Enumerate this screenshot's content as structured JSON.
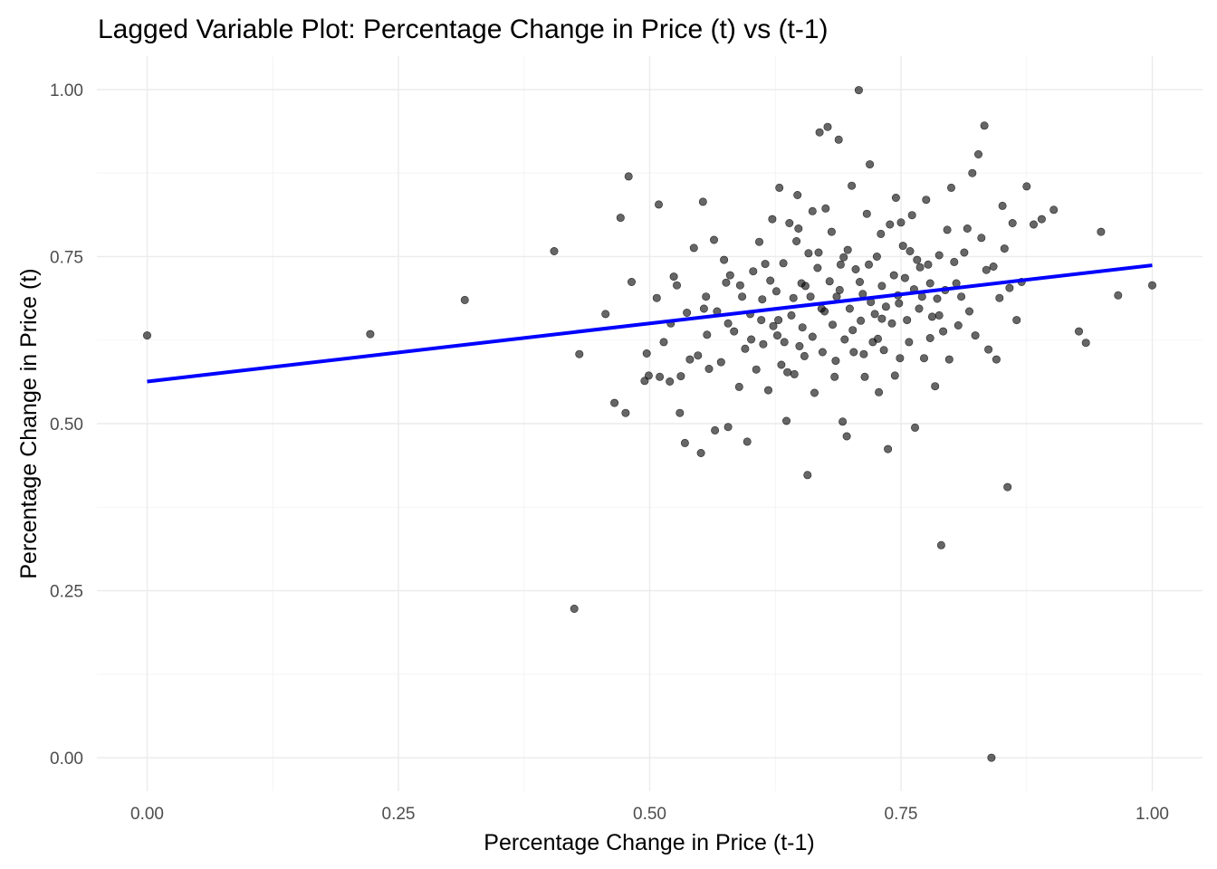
{
  "chart_data": {
    "type": "scatter",
    "title": "Lagged Variable Plot: Percentage Change in Price (t) vs (t-1)",
    "xlabel": "Percentage Change in Price (t-1)",
    "ylabel": "Percentage Change in Price (t)",
    "xlim": [
      -0.05,
      1.05
    ],
    "ylim": [
      -0.05,
      1.05
    ],
    "x_ticks": [
      0,
      0.25,
      0.5,
      0.75,
      1
    ],
    "x_tick_labels": [
      "0.00",
      "0.25",
      "0.50",
      "0.75",
      "1.00"
    ],
    "y_ticks": [
      0,
      0.25,
      0.5,
      0.75,
      1
    ],
    "y_tick_labels": [
      "0.00",
      "0.25",
      "0.50",
      "0.75",
      "1.00"
    ],
    "grid": true,
    "point_color": "#000000",
    "point_opacity": 0.6,
    "trend_line": {
      "color": "#0000ff",
      "x": [
        0,
        1
      ],
      "y": [
        0.563,
        0.737
      ]
    },
    "points": [
      [
        0.0,
        0.632
      ],
      [
        0.222,
        0.634
      ],
      [
        0.316,
        0.685
      ],
      [
        0.405,
        0.758
      ],
      [
        0.425,
        0.223
      ],
      [
        0.43,
        0.604
      ],
      [
        0.456,
        0.664
      ],
      [
        0.465,
        0.531
      ],
      [
        0.471,
        0.808
      ],
      [
        0.476,
        0.516
      ],
      [
        0.479,
        0.87
      ],
      [
        0.482,
        0.712
      ],
      [
        0.495,
        0.564
      ],
      [
        0.497,
        0.605
      ],
      [
        0.499,
        0.572
      ],
      [
        0.507,
        0.688
      ],
      [
        0.509,
        0.828
      ],
      [
        0.51,
        0.57
      ],
      [
        0.514,
        0.622
      ],
      [
        0.52,
        0.563
      ],
      [
        0.521,
        0.65
      ],
      [
        0.524,
        0.72
      ],
      [
        0.527,
        0.707
      ],
      [
        0.53,
        0.516
      ],
      [
        0.531,
        0.571
      ],
      [
        0.535,
        0.471
      ],
      [
        0.537,
        0.666
      ],
      [
        0.54,
        0.596
      ],
      [
        0.544,
        0.763
      ],
      [
        0.548,
        0.602
      ],
      [
        0.551,
        0.456
      ],
      [
        0.553,
        0.832
      ],
      [
        0.554,
        0.672
      ],
      [
        0.556,
        0.69
      ],
      [
        0.557,
        0.633
      ],
      [
        0.559,
        0.582
      ],
      [
        0.564,
        0.775
      ],
      [
        0.565,
        0.49
      ],
      [
        0.567,
        0.668
      ],
      [
        0.571,
        0.592
      ],
      [
        0.574,
        0.745
      ],
      [
        0.576,
        0.711
      ],
      [
        0.578,
        0.495
      ],
      [
        0.58,
        0.722
      ],
      [
        0.584,
        0.638
      ],
      [
        0.589,
        0.555
      ],
      [
        0.592,
        0.69
      ],
      [
        0.595,
        0.612
      ],
      [
        0.597,
        0.473
      ],
      [
        0.601,
        0.626
      ],
      [
        0.603,
        0.728
      ],
      [
        0.606,
        0.581
      ],
      [
        0.609,
        0.772
      ],
      [
        0.611,
        0.655
      ],
      [
        0.613,
        0.619
      ],
      [
        0.618,
        0.55
      ],
      [
        0.62,
        0.714
      ],
      [
        0.622,
        0.806
      ],
      [
        0.623,
        0.646
      ],
      [
        0.626,
        0.698
      ],
      [
        0.629,
        0.853
      ],
      [
        0.631,
        0.588
      ],
      [
        0.633,
        0.74
      ],
      [
        0.634,
        0.622
      ],
      [
        0.636,
        0.504
      ],
      [
        0.639,
        0.8
      ],
      [
        0.641,
        0.662
      ],
      [
        0.643,
        0.688
      ],
      [
        0.644,
        0.574
      ],
      [
        0.647,
        0.842
      ],
      [
        0.648,
        0.792
      ],
      [
        0.651,
        0.71
      ],
      [
        0.652,
        0.644
      ],
      [
        0.654,
        0.601
      ],
      [
        0.657,
        0.423
      ],
      [
        0.658,
        0.755
      ],
      [
        0.66,
        0.69
      ],
      [
        0.662,
        0.63
      ],
      [
        0.664,
        0.546
      ],
      [
        0.667,
        0.733
      ],
      [
        0.669,
        0.936
      ],
      [
        0.671,
        0.672
      ],
      [
        0.672,
        0.607
      ],
      [
        0.675,
        0.822
      ],
      [
        0.677,
        0.944
      ],
      [
        0.679,
        0.713
      ],
      [
        0.681,
        0.787
      ],
      [
        0.682,
        0.648
      ],
      [
        0.684,
        0.57
      ],
      [
        0.686,
        0.69
      ],
      [
        0.688,
        0.925
      ],
      [
        0.69,
        0.738
      ],
      [
        0.692,
        0.503
      ],
      [
        0.694,
        0.626
      ],
      [
        0.696,
        0.481
      ],
      [
        0.697,
        0.76
      ],
      [
        0.699,
        0.672
      ],
      [
        0.701,
        0.856
      ],
      [
        0.703,
        0.607
      ],
      [
        0.705,
        0.731
      ],
      [
        0.708,
        0.999
      ],
      [
        0.71,
        0.654
      ],
      [
        0.712,
        0.694
      ],
      [
        0.714,
        0.57
      ],
      [
        0.716,
        0.814
      ],
      [
        0.718,
        0.738
      ],
      [
        0.719,
        0.888
      ],
      [
        0.722,
        0.622
      ],
      [
        0.724,
        0.664
      ],
      [
        0.726,
        0.75
      ],
      [
        0.728,
        0.547
      ],
      [
        0.73,
        0.784
      ],
      [
        0.731,
        0.706
      ],
      [
        0.733,
        0.61
      ],
      [
        0.735,
        0.675
      ],
      [
        0.737,
        0.462
      ],
      [
        0.739,
        0.798
      ],
      [
        0.741,
        0.65
      ],
      [
        0.743,
        0.722
      ],
      [
        0.745,
        0.838
      ],
      [
        0.747,
        0.692
      ],
      [
        0.749,
        0.598
      ],
      [
        0.752,
        0.766
      ],
      [
        0.754,
        0.718
      ],
      [
        0.756,
        0.655
      ],
      [
        0.758,
        0.622
      ],
      [
        0.761,
        0.812
      ],
      [
        0.763,
        0.701
      ],
      [
        0.764,
        0.494
      ],
      [
        0.766,
        0.745
      ],
      [
        0.768,
        0.672
      ],
      [
        0.771,
        0.69
      ],
      [
        0.773,
        0.598
      ],
      [
        0.775,
        0.835
      ],
      [
        0.777,
        0.738
      ],
      [
        0.779,
        0.71
      ],
      [
        0.781,
        0.66
      ],
      [
        0.784,
        0.556
      ],
      [
        0.786,
        0.687
      ],
      [
        0.788,
        0.752
      ],
      [
        0.79,
        0.318
      ],
      [
        0.792,
        0.638
      ],
      [
        0.794,
        0.7
      ],
      [
        0.796,
        0.79
      ],
      [
        0.798,
        0.596
      ],
      [
        0.8,
        0.853
      ],
      [
        0.803,
        0.742
      ],
      [
        0.805,
        0.71
      ],
      [
        0.807,
        0.647
      ],
      [
        0.81,
        0.69
      ],
      [
        0.813,
        0.756
      ],
      [
        0.816,
        0.792
      ],
      [
        0.818,
        0.668
      ],
      [
        0.821,
        0.875
      ],
      [
        0.824,
        0.632
      ],
      [
        0.827,
        0.903
      ],
      [
        0.83,
        0.778
      ],
      [
        0.833,
        0.946
      ],
      [
        0.835,
        0.73
      ],
      [
        0.837,
        0.611
      ],
      [
        0.84,
        0.0
      ],
      [
        0.842,
        0.735
      ],
      [
        0.845,
        0.596
      ],
      [
        0.848,
        0.688
      ],
      [
        0.851,
        0.826
      ],
      [
        0.853,
        0.762
      ],
      [
        0.856,
        0.405
      ],
      [
        0.858,
        0.703
      ],
      [
        0.861,
        0.8
      ],
      [
        0.865,
        0.655
      ],
      [
        0.87,
        0.712
      ],
      [
        0.875,
        0.855
      ],
      [
        0.882,
        0.798
      ],
      [
        0.89,
        0.806
      ],
      [
        0.902,
        0.82
      ],
      [
        0.927,
        0.638
      ],
      [
        0.934,
        0.621
      ],
      [
        0.949,
        0.787
      ],
      [
        0.966,
        0.692
      ],
      [
        1.0,
        0.707
      ],
      [
        0.615,
        0.739
      ],
      [
        0.628,
        0.655
      ],
      [
        0.646,
        0.773
      ],
      [
        0.662,
        0.818
      ],
      [
        0.685,
        0.594
      ],
      [
        0.702,
        0.64
      ],
      [
        0.72,
        0.682
      ],
      [
        0.744,
        0.572
      ],
      [
        0.759,
        0.758
      ],
      [
        0.779,
        0.628
      ],
      [
        0.6,
        0.664
      ],
      [
        0.637,
        0.577
      ],
      [
        0.655,
        0.706
      ],
      [
        0.674,
        0.668
      ],
      [
        0.693,
        0.749
      ],
      [
        0.713,
        0.604
      ],
      [
        0.731,
        0.657
      ],
      [
        0.75,
        0.801
      ],
      [
        0.769,
        0.734
      ],
      [
        0.788,
        0.662
      ],
      [
        0.578,
        0.65
      ],
      [
        0.59,
        0.707
      ],
      [
        0.612,
        0.686
      ],
      [
        0.627,
        0.632
      ],
      [
        0.649,
        0.616
      ],
      [
        0.668,
        0.756
      ],
      [
        0.689,
        0.7
      ],
      [
        0.709,
        0.712
      ],
      [
        0.727,
        0.627
      ],
      [
        0.748,
        0.68
      ]
    ]
  }
}
